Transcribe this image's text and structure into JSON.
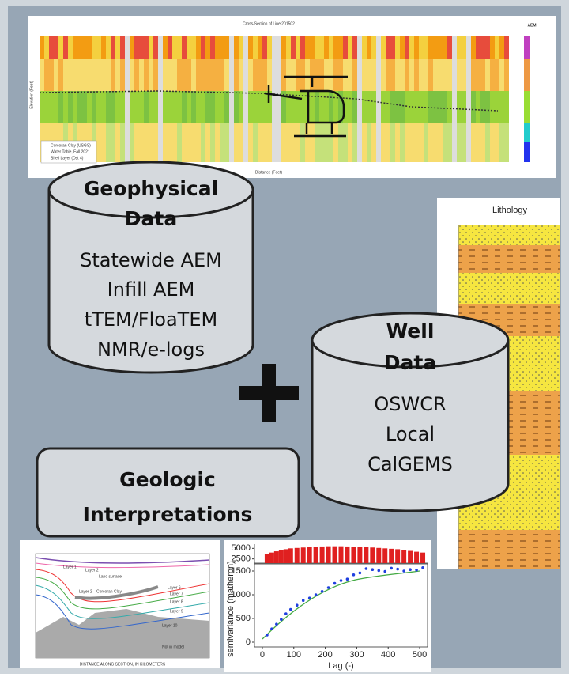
{
  "geophysical_data": {
    "title": [
      "Geophysical",
      "Data"
    ],
    "items": [
      "Statewide AEM",
      "Infill AEM",
      "tTEM/FloaTEM",
      "NMR/e-logs"
    ]
  },
  "well_data": {
    "title": [
      "Well",
      "Data"
    ],
    "items": [
      "OSWCR",
      "Local",
      "CalGEMS"
    ]
  },
  "geologic_interpretations": {
    "title": [
      "Geologic",
      "Interpretations"
    ]
  },
  "lithology": {
    "title": "Lithology"
  },
  "aem_section": {
    "title": "Cross-Section of Line 201502",
    "xlabel": "Distance (Feet)",
    "ylabel": "Elevation (Feet)",
    "colorbar_label": "AEM",
    "legend": [
      "Corcoran Clay (USGS)",
      "Water Table, Fall 2021",
      "Shell Layer (Dst 4)"
    ]
  },
  "cross_section": {
    "labels": [
      "Layer 1",
      "Layer 2",
      "Land surface",
      "Layer 2",
      "Corcoran Clay",
      "Layer 6",
      "Layer 7",
      "Layer 8",
      "Layer 9",
      "Layer 10",
      "Not in model"
    ],
    "xlabel": "DISTANCE ALONG SECTION, IN KILOMETERS"
  },
  "semivariogram": {
    "xlabel": "Lag (-)",
    "ylabel": "semivariance (matheron)",
    "xlim": [
      -25,
      525
    ],
    "ylim": [
      -100,
      1650
    ],
    "xticks": [
      0,
      100,
      200,
      300,
      400,
      500
    ],
    "yticks": [
      0,
      500,
      1000,
      1500
    ],
    "count_ylim": [
      1500,
      6000
    ],
    "count_yticks": [
      2500,
      5000
    ],
    "lag": [
      15,
      30,
      45,
      60,
      75,
      90,
      110,
      130,
      150,
      170,
      190,
      210,
      230,
      250,
      270,
      290,
      310,
      330,
      350,
      370,
      390,
      410,
      430,
      450,
      470,
      490,
      510
    ],
    "semivariance": [
      150,
      280,
      380,
      480,
      600,
      690,
      780,
      880,
      930,
      1000,
      1070,
      1150,
      1240,
      1300,
      1330,
      1420,
      1460,
      1550,
      1530,
      1510,
      1490,
      1560,
      1540,
      1500,
      1530,
      1520,
      1570
    ],
    "pair_counts": [
      3600,
      4000,
      4300,
      4600,
      4800,
      5000,
      5100,
      5200,
      5300,
      5400,
      5450,
      5500,
      5500,
      5500,
      5450,
      5400,
      5350,
      5300,
      5200,
      5100,
      5000,
      4900,
      4800,
      4600,
      4400,
      4200,
      4000
    ]
  }
}
